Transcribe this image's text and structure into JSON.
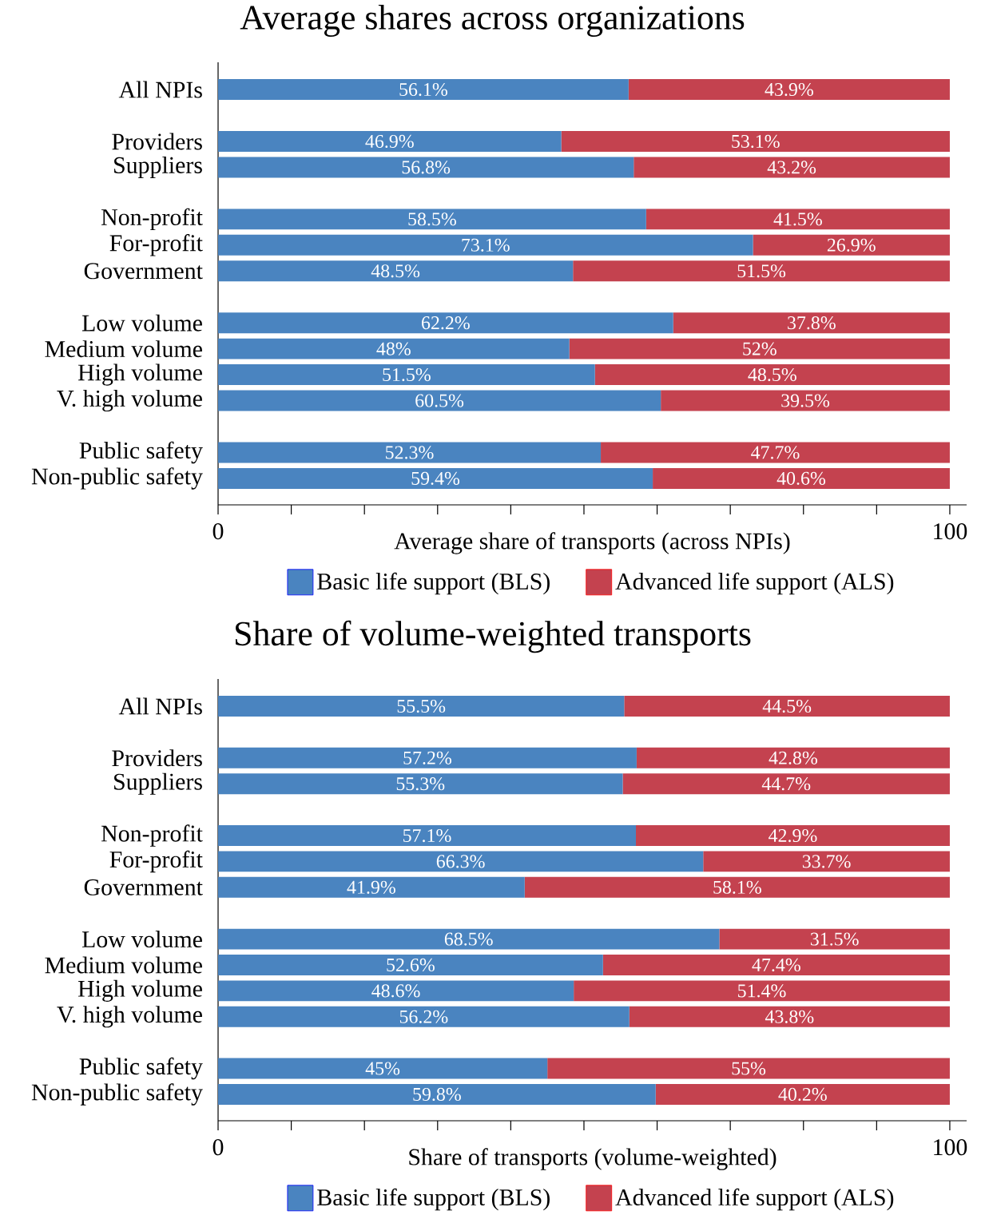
{
  "chart_data": [
    {
      "type": "bar",
      "orientation": "horizontal",
      "stacked": true,
      "title": "Average shares across organizations",
      "xlabel": "Average share of transports (across NPIs)",
      "categories": [
        "All NPIs",
        null,
        "Providers",
        "Suppliers",
        null,
        "Non-profit",
        "For-profit",
        "Government",
        null,
        "Low volume",
        "Medium volume",
        "High volume",
        "V. high volume",
        null,
        "Public safety",
        "Non-public safety"
      ],
      "series": [
        {
          "name": "Basic life support (BLS)",
          "color": "#4a84c0",
          "values": [
            56.1,
            null,
            46.9,
            56.8,
            null,
            58.5,
            73.1,
            48.5,
            null,
            62.2,
            48,
            51.5,
            60.5,
            null,
            52.3,
            59.4
          ],
          "value_labels": [
            "56.1%",
            null,
            "46.9%",
            "56.8%",
            null,
            "58.5%",
            "73.1%",
            "48.5%",
            null,
            "62.2%",
            "48%",
            "51.5%",
            "60.5%",
            null,
            "52.3%",
            "59.4%"
          ]
        },
        {
          "name": "Advanced life support (ALS)",
          "color": "#c4424f",
          "values": [
            43.9,
            null,
            53.1,
            43.2,
            null,
            41.5,
            26.9,
            51.5,
            null,
            37.8,
            52,
            48.5,
            39.5,
            null,
            47.7,
            40.6
          ],
          "value_labels": [
            "43.9%",
            null,
            "53.1%",
            "43.2%",
            null,
            "41.5%",
            "26.9%",
            "51.5%",
            null,
            "37.8%",
            "52%",
            "48.5%",
            "39.5%",
            null,
            "47.7%",
            "40.6%"
          ]
        }
      ],
      "xlim": [
        0,
        102.3
      ],
      "xticks": [
        0,
        {
          "value": 10,
          "label": null
        },
        {
          "value": 20,
          "label": null
        },
        {
          "value": 30,
          "label": null
        },
        {
          "value": 40,
          "label": null
        },
        {
          "value": 50,
          "label": null
        },
        {
          "value": 60,
          "label": null
        },
        {
          "value": 70,
          "label": null
        },
        {
          "value": 80,
          "label": null
        },
        {
          "value": 90,
          "label": null
        },
        100
      ],
      "legend": "bottom"
    },
    {
      "type": "bar",
      "orientation": "horizontal",
      "stacked": true,
      "title": "Share of volume-weighted transports",
      "xlabel": "Share of transports (volume-weighted)",
      "categories": [
        "All NPIs",
        null,
        "Providers",
        "Suppliers",
        null,
        "Non-profit",
        "For-profit",
        "Government",
        null,
        "Low volume",
        "Medium volume",
        "High volume",
        "V. high volume",
        null,
        "Public safety",
        "Non-public safety"
      ],
      "series": [
        {
          "name": "Basic life support (BLS)",
          "color": "#4a84c0",
          "values": [
            55.5,
            null,
            57.2,
            55.3,
            null,
            57.1,
            66.3,
            41.9,
            null,
            68.5,
            52.6,
            48.6,
            56.2,
            null,
            45,
            59.8
          ],
          "value_labels": [
            "55.5%",
            null,
            "57.2%",
            "55.3%",
            null,
            "57.1%",
            "66.3%",
            "41.9%",
            null,
            "68.5%",
            "52.6%",
            "48.6%",
            "56.2%",
            null,
            "45%",
            "59.8%"
          ]
        },
        {
          "name": "Advanced life support (ALS)",
          "color": "#c4424f",
          "values": [
            44.5,
            null,
            42.8,
            44.7,
            null,
            42.9,
            33.7,
            58.1,
            null,
            31.5,
            47.4,
            51.4,
            43.8,
            null,
            55,
            40.2
          ],
          "value_labels": [
            "44.5%",
            null,
            "42.8%",
            "44.7%",
            null,
            "42.9%",
            "33.7%",
            "58.1%",
            null,
            "31.5%",
            "47.4%",
            "51.4%",
            "43.8%",
            null,
            "55%",
            "40.2%"
          ]
        }
      ],
      "xlim": [
        0,
        102.3
      ],
      "xticks": [
        0,
        {
          "value": 10,
          "label": null
        },
        {
          "value": 20,
          "label": null
        },
        {
          "value": 30,
          "label": null
        },
        {
          "value": 40,
          "label": null
        },
        {
          "value": 50,
          "label": null
        },
        {
          "value": 60,
          "label": null
        },
        {
          "value": 70,
          "label": null
        },
        {
          "value": 80,
          "label": null
        },
        {
          "value": 90,
          "label": null
        },
        100
      ],
      "legend": "bottom"
    }
  ]
}
